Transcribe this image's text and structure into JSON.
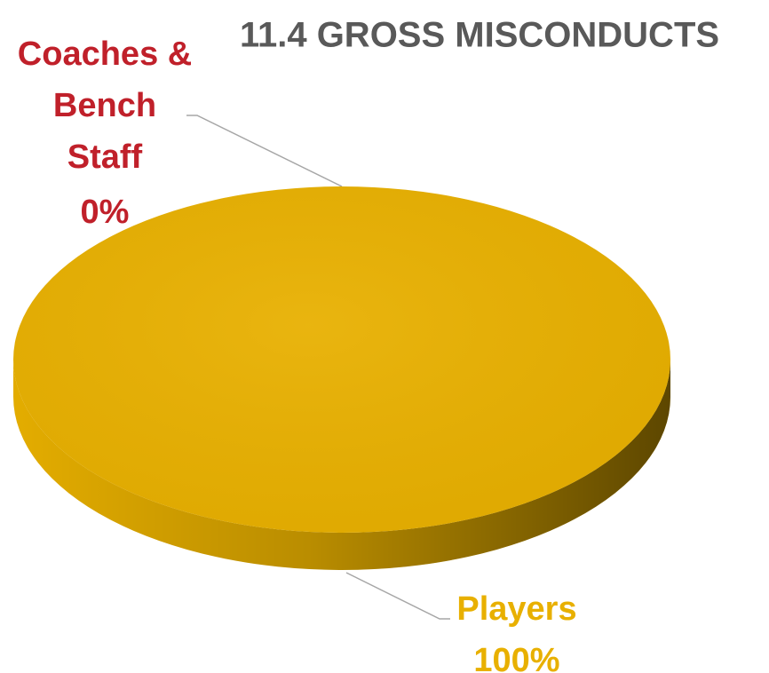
{
  "chart_data": {
    "type": "pie3d",
    "title": "11.4 GROSS MISCONDUCTS",
    "categories": [
      "Coaches & Bench Staff",
      "Players"
    ],
    "values": [
      0,
      100
    ],
    "value_labels": [
      "0%",
      "100%"
    ],
    "colors": [
      "#C0202A",
      "#E8B000"
    ]
  }
}
